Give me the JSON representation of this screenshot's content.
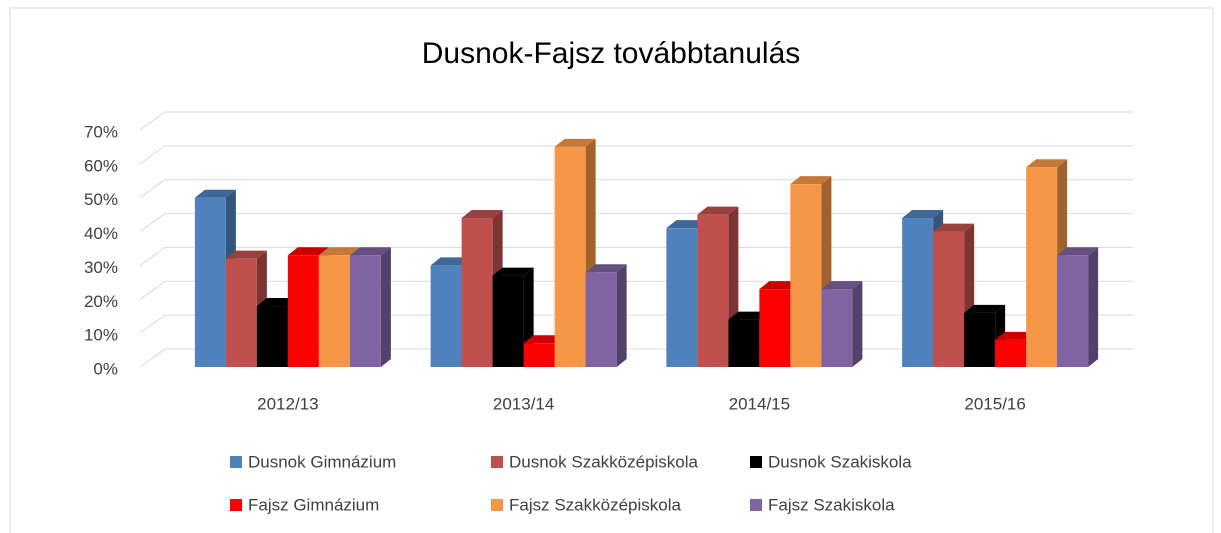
{
  "chart_data": {
    "type": "bar3d",
    "title": "Dusnok-Fajsz továbbtanulás",
    "categories": [
      "2012/13",
      "2013/14",
      "2014/15",
      "2015/16"
    ],
    "series": [
      {
        "name": "Dusnok Gimnázium",
        "color": "#4f81bd",
        "values": [
          50,
          30,
          41,
          44
        ]
      },
      {
        "name": "Dusnok Szakközépiskola",
        "color": "#c0504d",
        "values": [
          32,
          44,
          45,
          40
        ]
      },
      {
        "name": "Dusnok Szakiskola",
        "color": "#000000",
        "values": [
          18,
          27,
          14,
          16
        ]
      },
      {
        "name": "Fajsz Gimnázium",
        "color": "#ff0000",
        "values": [
          33,
          7,
          23,
          8
        ]
      },
      {
        "name": "Fajsz Szakközépiskola",
        "color": "#f79646",
        "values": [
          33,
          65,
          54,
          59
        ]
      },
      {
        "name": "Fajsz Szakiskola",
        "color": "#8064a2",
        "values": [
          33,
          28,
          23,
          33
        ]
      }
    ],
    "ylim": [
      0,
      70
    ],
    "yticks": [
      {
        "value": 0,
        "label": "0%"
      },
      {
        "value": 10,
        "label": "10%"
      },
      {
        "value": 20,
        "label": "20%"
      },
      {
        "value": 30,
        "label": "30%"
      },
      {
        "value": 40,
        "label": "40%"
      },
      {
        "value": 50,
        "label": "50%"
      },
      {
        "value": 60,
        "label": "60%"
      },
      {
        "value": 70,
        "label": "70%"
      }
    ],
    "grid": true
  }
}
